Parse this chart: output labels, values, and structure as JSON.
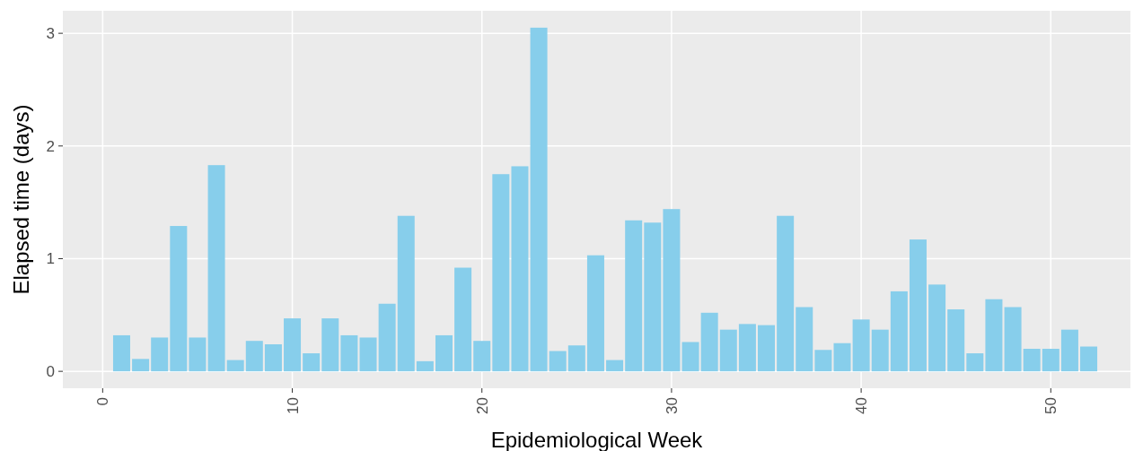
{
  "chart_data": {
    "type": "bar",
    "xlabel": "Epidemiological Week",
    "ylabel": "Elapsed time (days)",
    "x": [
      1,
      2,
      3,
      4,
      5,
      6,
      7,
      8,
      9,
      10,
      11,
      12,
      13,
      14,
      15,
      16,
      17,
      18,
      19,
      20,
      21,
      22,
      23,
      24,
      25,
      26,
      27,
      28,
      29,
      30,
      31,
      32,
      33,
      34,
      35,
      36,
      37,
      38,
      39,
      40,
      41,
      42,
      43,
      44,
      45,
      46,
      47,
      48,
      49,
      50,
      51,
      52
    ],
    "values": [
      0.32,
      0.11,
      0.3,
      1.29,
      0.3,
      1.83,
      0.1,
      0.27,
      0.24,
      0.47,
      0.16,
      0.47,
      0.32,
      0.3,
      0.6,
      1.38,
      0.09,
      0.32,
      0.92,
      0.27,
      1.75,
      1.82,
      3.05,
      0.18,
      0.23,
      1.03,
      0.1,
      1.34,
      1.32,
      1.44,
      0.26,
      0.52,
      0.37,
      0.42,
      0.41,
      1.38,
      0.57,
      0.19,
      0.25,
      0.46,
      0.37,
      0.71,
      1.17,
      0.77,
      0.55,
      0.16,
      0.64,
      0.57,
      0.2,
      0.2,
      0.37,
      0.22
    ],
    "color": "#87ceeb",
    "xlim": [
      -2.1,
      54.2
    ],
    "xticks": [
      0,
      10,
      20,
      30,
      40,
      50
    ],
    "ylim": [
      -0.15,
      3.2
    ],
    "yticks": [
      0,
      1,
      2,
      3
    ],
    "grid": true
  }
}
